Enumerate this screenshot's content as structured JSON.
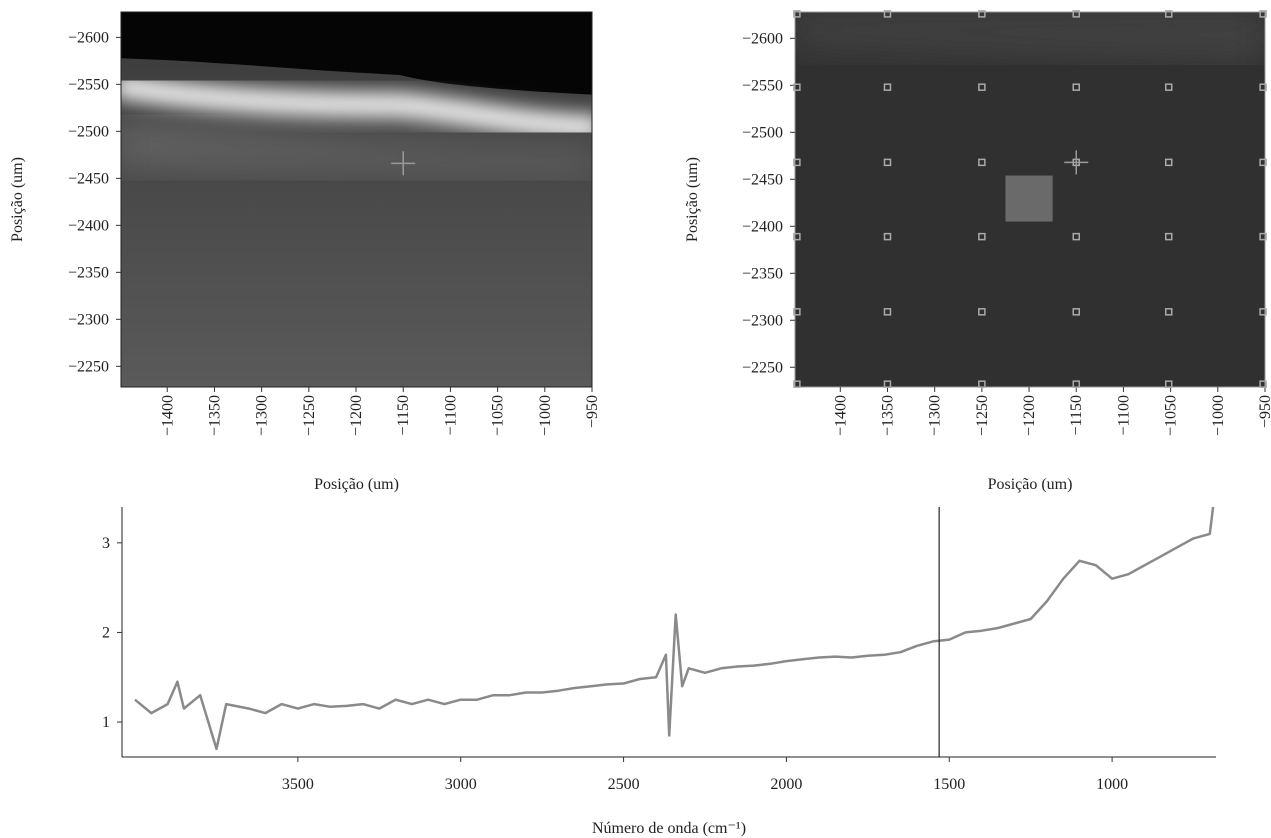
{
  "chart_data": [
    {
      "type": "heatmap",
      "xlabel": "Posição (um)",
      "ylabel": "Posição (um)",
      "xlim": [
        -1449,
        -950
      ],
      "ylim": [
        -2228,
        -2627
      ],
      "xticks": [
        {
          "value": -1400,
          "label": "−1400"
        },
        {
          "value": -1350,
          "label": "−1350"
        },
        {
          "value": -1300,
          "label": "−1300"
        },
        {
          "value": -1250,
          "label": "−1250"
        },
        {
          "value": -1200,
          "label": "−1200"
        },
        {
          "value": -1150,
          "label": "−1150"
        },
        {
          "value": -1100,
          "label": "−1100"
        },
        {
          "value": -1050,
          "label": "−1050"
        },
        {
          "value": -1000,
          "label": "−1000"
        },
        {
          "value": -950,
          "label": "−950"
        }
      ],
      "yticks": [
        {
          "value": -2600,
          "label": "−2600"
        },
        {
          "value": -2550,
          "label": "−2550"
        },
        {
          "value": -2500,
          "label": "−2500"
        },
        {
          "value": -2450,
          "label": "−2450"
        },
        {
          "value": -2400,
          "label": "−2400"
        },
        {
          "value": -2350,
          "label": "−2350"
        },
        {
          "value": -2300,
          "label": "−2300"
        },
        {
          "value": -2250,
          "label": "−2250"
        }
      ],
      "crosshair": {
        "x": -1150,
        "y": -2466
      }
    },
    {
      "type": "heatmap",
      "xlabel": "Posição (um)",
      "ylabel": "Posição (um)",
      "xlim": [
        -1448,
        -950
      ],
      "ylim": [
        -2229,
        -2628
      ],
      "xticks": [
        {
          "value": -1400,
          "label": "−1400"
        },
        {
          "value": -1350,
          "label": "−1350"
        },
        {
          "value": -1300,
          "label": "−1300"
        },
        {
          "value": -1250,
          "label": "−1250"
        },
        {
          "value": -1200,
          "label": "−1200"
        },
        {
          "value": -1150,
          "label": "−1150"
        },
        {
          "value": -1100,
          "label": "−1100"
        },
        {
          "value": -1050,
          "label": "−1050"
        },
        {
          "value": -1000,
          "label": "−1000"
        },
        {
          "value": -950,
          "label": "−950"
        }
      ],
      "yticks": [
        {
          "value": -2600,
          "label": "−2600"
        },
        {
          "value": -2550,
          "label": "−2550"
        },
        {
          "value": -2500,
          "label": "−2500"
        },
        {
          "value": -2450,
          "label": "−2450"
        },
        {
          "value": -2400,
          "label": "−2400"
        },
        {
          "value": -2350,
          "label": "−2350"
        },
        {
          "value": -2300,
          "label": "−2300"
        },
        {
          "value": -2250,
          "label": "−2250"
        }
      ],
      "grid_points": {
        "x": [
          -1446,
          -1350,
          -1250,
          -1150,
          -1052,
          -952
        ],
        "y": [
          -2626,
          -2548,
          -2468,
          -2389,
          -2309,
          -2232
        ]
      },
      "selection": {
        "x": [
          -1225,
          -1175
        ],
        "y": [
          -2454,
          -2405
        ]
      },
      "crosshair": {
        "x": -1150,
        "y": -2468
      }
    },
    {
      "type": "line",
      "xlabel": "Número de onda (cm⁻¹)",
      "color": "#8a8a8a",
      "xlim": [
        4040,
        681
      ],
      "ylim": [
        0.61,
        3.4
      ],
      "xticks": [
        3500,
        3000,
        2500,
        2000,
        1500,
        1000
      ],
      "yticks": [
        1,
        2,
        3
      ],
      "vline": 1531,
      "x": [
        4000,
        3950,
        3900,
        3870,
        3850,
        3800,
        3750,
        3720,
        3650,
        3600,
        3550,
        3500,
        3450,
        3400,
        3350,
        3300,
        3250,
        3200,
        3150,
        3100,
        3050,
        3000,
        2950,
        2900,
        2850,
        2800,
        2750,
        2700,
        2650,
        2600,
        2550,
        2500,
        2450,
        2400,
        2370,
        2360,
        2340,
        2320,
        2300,
        2250,
        2200,
        2150,
        2100,
        2050,
        2000,
        1950,
        1900,
        1850,
        1800,
        1750,
        1700,
        1650,
        1600,
        1550,
        1500,
        1450,
        1400,
        1350,
        1300,
        1250,
        1200,
        1150,
        1100,
        1050,
        1000,
        950,
        900,
        850,
        800,
        750,
        700,
        690
      ],
      "values": [
        1.25,
        1.1,
        1.2,
        1.45,
        1.15,
        1.3,
        0.7,
        1.2,
        1.15,
        1.1,
        1.2,
        1.15,
        1.2,
        1.17,
        1.18,
        1.2,
        1.15,
        1.25,
        1.2,
        1.25,
        1.2,
        1.25,
        1.25,
        1.3,
        1.3,
        1.33,
        1.33,
        1.35,
        1.38,
        1.4,
        1.42,
        1.43,
        1.48,
        1.5,
        1.75,
        0.85,
        2.2,
        1.4,
        1.6,
        1.55,
        1.6,
        1.62,
        1.63,
        1.65,
        1.68,
        1.7,
        1.72,
        1.73,
        1.72,
        1.74,
        1.75,
        1.78,
        1.85,
        1.9,
        1.92,
        2.0,
        2.02,
        2.05,
        2.1,
        2.15,
        2.35,
        2.6,
        2.8,
        2.75,
        2.6,
        2.65,
        2.75,
        2.85,
        2.95,
        3.05,
        3.1,
        3.4
      ]
    }
  ]
}
